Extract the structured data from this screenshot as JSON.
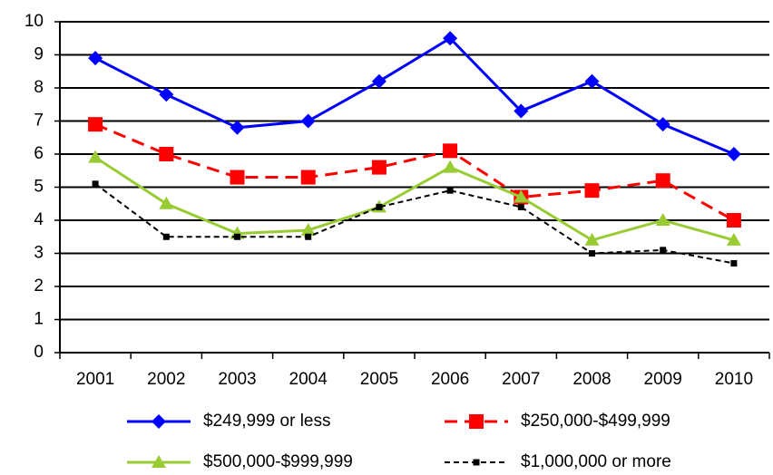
{
  "chart_data": {
    "type": "line",
    "categories": [
      "2001",
      "2002",
      "2003",
      "2004",
      "2005",
      "2006",
      "2007",
      "2008",
      "2009",
      "2010"
    ],
    "series": [
      {
        "name": "$249,999 or less",
        "color": "#0000ff",
        "values": [
          8.9,
          7.8,
          6.8,
          7.0,
          8.2,
          9.5,
          7.3,
          8.2,
          6.9,
          6.0
        ]
      },
      {
        "name": "$250,000-$499,999",
        "color": "#ff0000",
        "values": [
          6.9,
          6.0,
          5.3,
          5.3,
          5.6,
          6.1,
          4.7,
          4.9,
          5.2,
          4.0
        ]
      },
      {
        "name": "$500,000-$999,999",
        "color": "#99cc33",
        "values": [
          5.9,
          4.5,
          3.6,
          3.7,
          4.4,
          5.6,
          4.7,
          3.4,
          4.0,
          3.4
        ]
      },
      {
        "name": "$1,000,000 or more",
        "color": "#000000",
        "values": [
          5.1,
          3.5,
          3.5,
          3.5,
          4.4,
          4.9,
          4.4,
          3.0,
          3.1,
          2.7
        ]
      }
    ],
    "ylim": [
      0,
      10
    ],
    "yticks": [
      0,
      1,
      2,
      3,
      4,
      5,
      6,
      7,
      8,
      9,
      10
    ],
    "grid": true
  }
}
